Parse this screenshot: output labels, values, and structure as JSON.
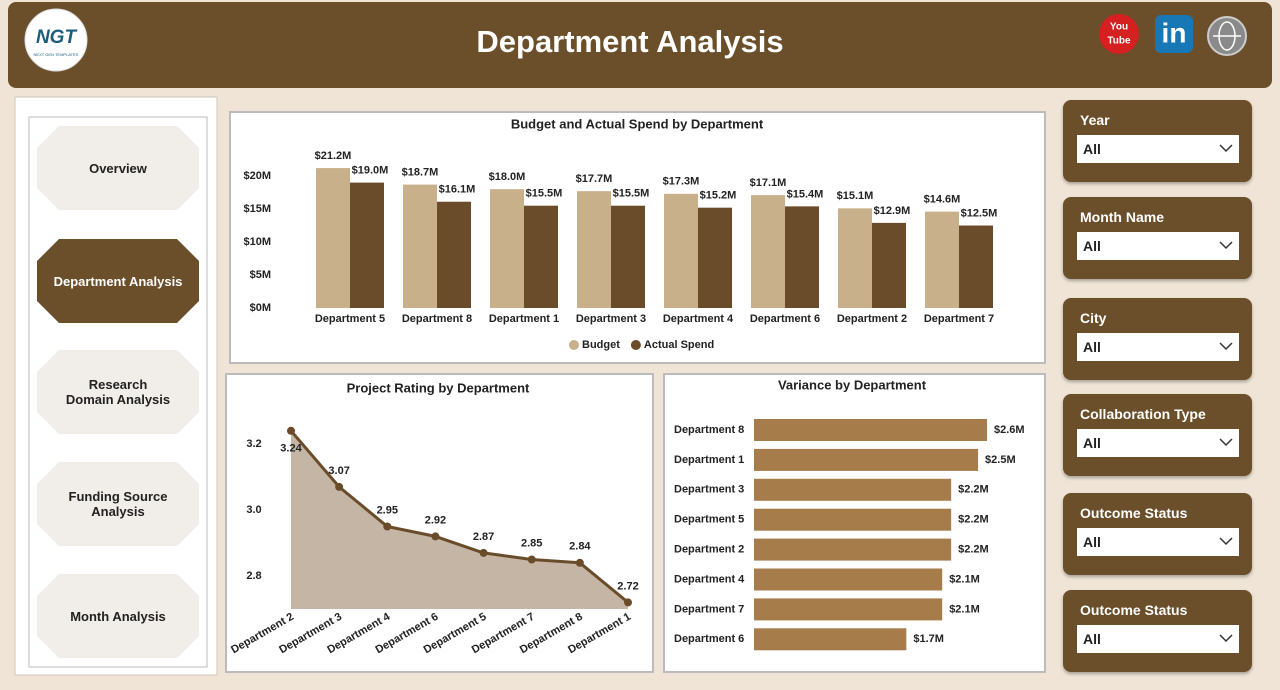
{
  "header": {
    "title": "Department Analysis",
    "logo": "NGT",
    "logo_sub": "NEXT GEN TEMPLATES",
    "youtube_top": "You",
    "youtube_bottom": "Tube",
    "linkedin": "in"
  },
  "nav": {
    "items": [
      "Overview",
      "Department Analysis",
      "Research Domain Analysis",
      "Funding Source Analysis",
      "Month Analysis"
    ],
    "active": 1
  },
  "filters": [
    {
      "label": "Year",
      "value": "All"
    },
    {
      "label": "Month Name",
      "value": "All"
    },
    {
      "label": "City",
      "value": "All"
    },
    {
      "label": "Collaboration Type",
      "value": "All"
    },
    {
      "label": "Outcome Status",
      "value": "All"
    },
    {
      "label": "Outcome Status",
      "value": "All"
    }
  ],
  "chart_data": [
    {
      "type": "bar",
      "title": "Budget and Actual Spend by Department",
      "categories": [
        "Department 5",
        "Department 8",
        "Department 1",
        "Department 3",
        "Department 4",
        "Department 6",
        "Department 2",
        "Department 7"
      ],
      "series": [
        {
          "name": "Budget",
          "color": "#c8b08a",
          "values": [
            21.2,
            18.7,
            18.0,
            17.7,
            17.3,
            17.1,
            15.1,
            14.6
          ],
          "value_labels": [
            "$21.2M",
            "$18.7M",
            "$18.0M",
            "$17.7M",
            "$17.3M",
            "$17.1M",
            "$15.1M",
            "$14.6M"
          ]
        },
        {
          "name": "Actual Spend",
          "color": "#6b4c2a",
          "values": [
            19.0,
            16.1,
            15.5,
            15.5,
            15.2,
            15.4,
            12.9,
            12.5
          ],
          "value_labels": [
            "$19.0M",
            "$16.1M",
            "$15.5M",
            "$15.5M",
            "$15.2M",
            "$15.4M",
            "$12.9M",
            "$12.5M"
          ]
        }
      ],
      "ylim": [
        0,
        24
      ],
      "yticks": [
        {
          "value": 0,
          "label": "$0M"
        },
        {
          "value": 5,
          "label": "$5M"
        },
        {
          "value": 10,
          "label": "$10M"
        },
        {
          "value": 15,
          "label": "$15M"
        },
        {
          "value": 20,
          "label": "$20M"
        }
      ],
      "legend": "bottom"
    },
    {
      "type": "area",
      "title": "Project Rating by Department",
      "categories": [
        "Department 2",
        "Department 3",
        "Department 4",
        "Department 6",
        "Department 5",
        "Department 7",
        "Department 8",
        "Department 1"
      ],
      "values": [
        3.24,
        3.07,
        2.95,
        2.92,
        2.87,
        2.85,
        2.84,
        2.72
      ],
      "color": "#6b4c2a",
      "fill": "#c4b5a5",
      "ylim": [
        2.7,
        3.28
      ],
      "yticks": [
        2.8,
        {
          "value": 3,
          "label": "3.0"
        },
        3.2
      ]
    },
    {
      "type": "bar",
      "horizontal": true,
      "title": "Variance by Department",
      "categories": [
        "Department 8",
        "Department 1",
        "Department 3",
        "Department 5",
        "Department 2",
        "Department 4",
        "Department 7",
        "Department 6"
      ],
      "values": [
        2.6,
        2.5,
        2.2,
        2.2,
        2.2,
        2.1,
        2.1,
        1.7
      ],
      "value_labels": [
        "$2.6M",
        "$2.5M",
        "$2.2M",
        "$2.2M",
        "$2.2M",
        "$2.1M",
        "$2.1M",
        "$1.7M"
      ],
      "color": "#a67c4a",
      "xlim": [
        0,
        2.6
      ]
    }
  ]
}
